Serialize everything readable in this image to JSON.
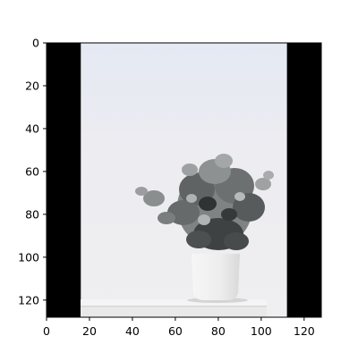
{
  "chart_data": {
    "type": "image",
    "title": "",
    "xlabel": "",
    "ylabel": "",
    "xlim": [
      0,
      128
    ],
    "ylim": [
      128,
      0
    ],
    "y_inverted": true,
    "x_ticks": [
      0,
      20,
      40,
      60,
      80,
      100,
      120
    ],
    "y_ticks": [
      0,
      20,
      40,
      60,
      80,
      100,
      120
    ],
    "x_tick_labels": [
      "0",
      "20",
      "40",
      "60",
      "80",
      "100",
      "120"
    ],
    "y_tick_labels": [
      "0",
      "20",
      "40",
      "60",
      "80",
      "100",
      "120"
    ],
    "grid": false,
    "image_content": {
      "subject": "potted plant on a white shelf against a light wall",
      "black_bars": [
        {
          "side": "left",
          "x_range": [
            0,
            16
          ]
        },
        {
          "side": "right",
          "x_range": [
            112,
            128
          ]
        }
      ],
      "photo_x_range": [
        16,
        112
      ],
      "colors": {
        "bar": "#000000",
        "wall": "#eeeef3",
        "wall_top": "#e6eaf4",
        "shelf": "#f2f2f2",
        "pot": "#efefef",
        "leaves_dark": "#3f4242",
        "leaves_mid": "#6b6e6e",
        "leaves_light": "#9fa3a3"
      }
    }
  }
}
